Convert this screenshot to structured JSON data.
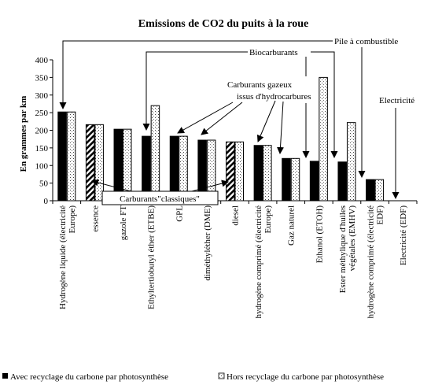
{
  "chart_data": {
    "type": "bar",
    "title": "Emissions de CO2 du puits à la roue",
    "ylabel": "En grammes par km",
    "xlabel": "",
    "ylim": [
      0,
      400
    ],
    "yticks": [
      0,
      50,
      100,
      150,
      200,
      250,
      300,
      350,
      400
    ],
    "grid": false,
    "legend_position": "bottom",
    "categories": [
      "Hydrogène liquide (électricité Europe)",
      "essence",
      "gazole FT",
      "Ethyltertiobutyl éther (ETBE)",
      "GPL",
      "diméthyléther (DME)",
      "diesel",
      "hydrogène comprimé (électricité Europe)",
      "Gaz naturel",
      "Ethanol (ETOH)",
      "Ester méthylique d'huiles végétales (EMHV)",
      "hydrogène comprimé (électricité EDF)",
      "Electricité (EDF)"
    ],
    "series": [
      {
        "name": "Avec recyclage du carbone par photosynthèse",
        "values": [
          252,
          216,
          203,
          183,
          183,
          172,
          167,
          157,
          120,
          112,
          110,
          60,
          0
        ],
        "patterns": [
          "solid",
          "hatch",
          "solid",
          "solid",
          "solid",
          "solid",
          "hatch",
          "solid",
          "solid",
          "solid",
          "solid",
          "solid",
          "solid"
        ]
      },
      {
        "name": "Hors recyclage du carbone par photosynthèse",
        "values": [
          252,
          216,
          203,
          270,
          183,
          172,
          167,
          157,
          120,
          350,
          222,
          60,
          0
        ]
      }
    ],
    "annotations": [
      {
        "text": "Pile à combustible"
      },
      {
        "text": "Biocarburants"
      },
      {
        "text": "Carburants gazeux issus d'hydrocarbures",
        "lines": [
          "Carburants gazeux",
          "issus d'hydrocarbures"
        ]
      },
      {
        "text": "Electricité"
      },
      {
        "text": "Carburants\"classiques\""
      }
    ]
  },
  "colors": {
    "solid": "#000000",
    "dotted_fill": "#ffffff",
    "dots": "#555555",
    "axis": "#000000"
  }
}
